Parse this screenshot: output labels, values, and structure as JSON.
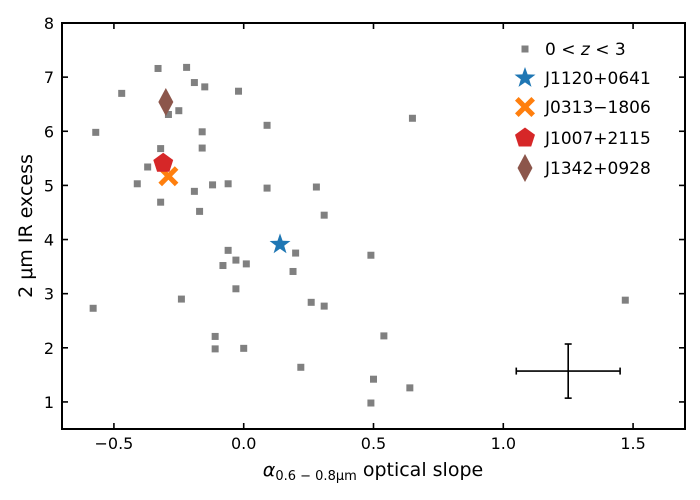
{
  "chart_data": {
    "type": "scatter",
    "title": "",
    "xlabel_main": "α",
    "xlabel_sub": "0.6 − 0.8μm",
    "xlabel_rest": " optical slope",
    "ylabel": "2 μm IR excess",
    "xlim": [
      -0.7,
      1.7
    ],
    "ylim": [
      0.5,
      8
    ],
    "xticks": [
      -0.5,
      0.0,
      0.5,
      1.0,
      1.5
    ],
    "xtick_labels": [
      "−0.5",
      "0.0",
      "0.5",
      "1.0",
      "1.5"
    ],
    "yticks": [
      1,
      2,
      3,
      4,
      5,
      6,
      7,
      8
    ],
    "ytick_labels": [
      "1",
      "2",
      "3",
      "4",
      "5",
      "6",
      "7",
      "8"
    ],
    "legend_position": "top-right",
    "series": [
      {
        "name": "0<z<3",
        "legend_label": "0 < z < 3",
        "marker": "square",
        "color": "#808080",
        "points": [
          [
            -0.57,
            5.98
          ],
          [
            -0.47,
            6.7
          ],
          [
            -0.33,
            7.16
          ],
          [
            -0.22,
            7.18
          ],
          [
            -0.19,
            6.9
          ],
          [
            -0.15,
            6.82
          ],
          [
            -0.02,
            6.74
          ],
          [
            -0.29,
            6.31
          ],
          [
            -0.25,
            6.38
          ],
          [
            -0.16,
            5.99
          ],
          [
            -0.16,
            5.69
          ],
          [
            -0.32,
            5.68
          ],
          [
            -0.37,
            5.34
          ],
          [
            -0.41,
            5.03
          ],
          [
            -0.12,
            5.01
          ],
          [
            -0.06,
            5.03
          ],
          [
            -0.19,
            4.89
          ],
          [
            -0.32,
            4.69
          ],
          [
            -0.17,
            4.52
          ],
          [
            0.09,
            6.11
          ],
          [
            0.09,
            4.95
          ],
          [
            0.28,
            4.97
          ],
          [
            0.31,
            4.45
          ],
          [
            0.65,
            6.24
          ],
          [
            -0.06,
            3.8
          ],
          [
            -0.08,
            3.52
          ],
          [
            -0.03,
            3.62
          ],
          [
            0.01,
            3.55
          ],
          [
            0.2,
            3.75
          ],
          [
            0.19,
            3.41
          ],
          [
            0.49,
            3.71
          ],
          [
            -0.03,
            3.09
          ],
          [
            -0.24,
            2.9
          ],
          [
            0.26,
            2.84
          ],
          [
            0.31,
            2.77
          ],
          [
            -0.58,
            2.73
          ],
          [
            -0.11,
            2.21
          ],
          [
            0.54,
            2.22
          ],
          [
            -0.11,
            1.98
          ],
          [
            0.0,
            1.99
          ],
          [
            0.22,
            1.64
          ],
          [
            0.5,
            1.42
          ],
          [
            0.64,
            1.26
          ],
          [
            0.49,
            0.98
          ],
          [
            1.47,
            2.88
          ]
        ]
      },
      {
        "name": "J1120+0641",
        "marker": "star",
        "color": "#1f77b4",
        "points": [
          [
            0.14,
            3.91
          ]
        ]
      },
      {
        "name": "J0313−1806",
        "marker": "x",
        "color": "#ff7f0e",
        "points": [
          [
            -0.29,
            5.17
          ]
        ]
      },
      {
        "name": "J1007+2115",
        "marker": "pentagon",
        "color": "#d62728",
        "points": [
          [
            -0.31,
            5.41
          ]
        ]
      },
      {
        "name": "J1342+0928",
        "marker": "diamond",
        "color": "#8c564b",
        "points": [
          [
            -0.3,
            6.54
          ]
        ]
      }
    ],
    "error_bar": {
      "x": 1.25,
      "y": 1.57,
      "xerr": 0.2,
      "yerr": 0.5,
      "color": "#000000"
    }
  }
}
